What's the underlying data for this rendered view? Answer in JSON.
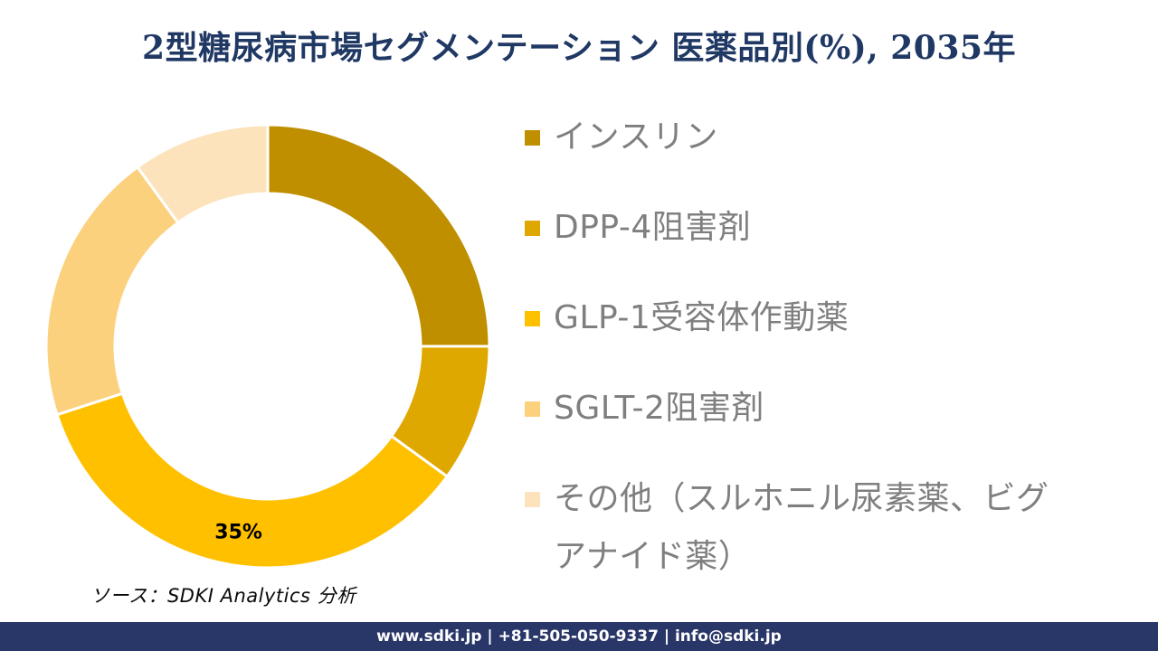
{
  "title": "2型糖尿病市場セグメンテーション 医薬品別(%), 2035年",
  "chart_data": {
    "type": "pie",
    "subtype": "donut",
    "title": "2型糖尿病市場セグメンテーション 医薬品別(%), 2035年",
    "unit": "%",
    "start_angle_deg": 0,
    "direction": "clockwise",
    "hole_ratio": 0.69,
    "legend_position": "right",
    "segments": [
      {
        "label": "インスリン",
        "value": 25,
        "color": "#BF8F00",
        "data_label": ""
      },
      {
        "label": "DPP-4阻害剤",
        "value": 10,
        "color": "#DFA800",
        "data_label": ""
      },
      {
        "label": "GLP-1受容体作動薬",
        "value": 35,
        "color": "#FFC000",
        "data_label": "35%"
      },
      {
        "label": "SGLT-2阻害剤",
        "value": 20,
        "color": "#FCD17E",
        "data_label": ""
      },
      {
        "label": "その他（スルホニル尿素薬、ビグアナイド薬）",
        "value": 10,
        "color": "#FCE3BB",
        "data_label": ""
      }
    ]
  },
  "source": "ソース：SDKI Analytics 分析",
  "footer": {
    "text": "www.sdki.jp | +81-505-050-9337 | info@sdki.jp",
    "background": "#293668"
  },
  "colors": {
    "title_navy": "#203864",
    "legend_text_gray": "#7F7F7F",
    "data_label_black": "#000000",
    "segment_divider_white": "#FFFFFF"
  }
}
